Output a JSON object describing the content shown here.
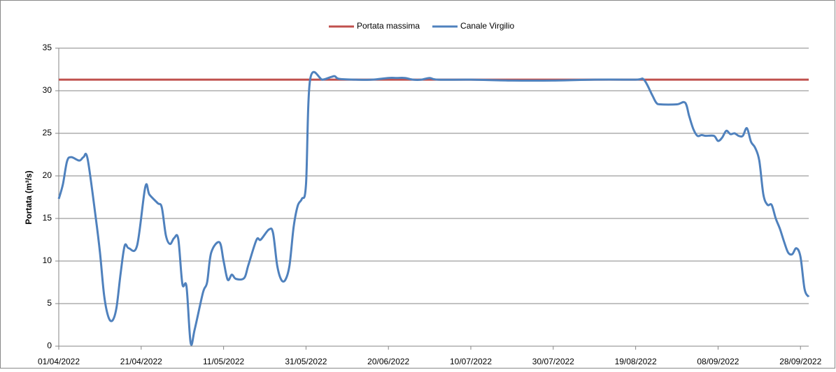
{
  "chart_data": {
    "type": "line",
    "ylabel": "Portata (m³/s)",
    "xlim": [
      "01/04/2022",
      "30/09/2022"
    ],
    "xticks": [
      "01/04/2022",
      "21/04/2022",
      "11/05/2022",
      "31/05/2022",
      "20/06/2022",
      "10/07/2022",
      "30/07/2022",
      "19/08/2022",
      "08/09/2022",
      "28/09/2022"
    ],
    "ylim": [
      0,
      35
    ],
    "yticks": [
      0,
      5,
      10,
      15,
      20,
      25,
      30,
      35
    ],
    "grid": true,
    "legend": "top",
    "series": [
      {
        "name": "Portata massima",
        "color": "#c0504d",
        "x": [
          "01/04/2022",
          "30/09/2022"
        ],
        "values": [
          31.3,
          31.3
        ]
      },
      {
        "name": "Canale Virgilio",
        "color": "#4f81bd",
        "x": [
          "01/04/2022",
          "02/04/2022",
          "03/04/2022",
          "04/04/2022",
          "06/04/2022",
          "07/04/2022",
          "08/04/2022",
          "10/04/2022",
          "11/04/2022",
          "12/04/2022",
          "13/04/2022",
          "14/04/2022",
          "15/04/2022",
          "16/04/2022",
          "17/04/2022",
          "18/04/2022",
          "20/04/2022",
          "22/04/2022",
          "23/04/2022",
          "25/04/2022",
          "26/04/2022",
          "27/04/2022",
          "28/04/2022",
          "29/04/2022",
          "30/04/2022",
          "01/05/2022",
          "02/05/2022",
          "03/05/2022",
          "04/05/2022",
          "06/05/2022",
          "07/05/2022",
          "08/05/2022",
          "10/05/2022",
          "11/05/2022",
          "12/05/2022",
          "13/05/2022",
          "14/05/2022",
          "16/05/2022",
          "17/05/2022",
          "19/05/2022",
          "20/05/2022",
          "22/05/2022",
          "23/05/2022",
          "24/05/2022",
          "25/05/2022",
          "26/05/2022",
          "27/05/2022",
          "28/05/2022",
          "29/05/2022",
          "30/05/2022",
          "31/05/2022",
          "01/06/2022",
          "04/06/2022",
          "06/06/2022",
          "07/06/2022",
          "08/06/2022",
          "12/06/2022",
          "16/06/2022",
          "20/06/2022",
          "22/06/2022",
          "24/06/2022",
          "26/06/2022",
          "28/06/2022",
          "30/06/2022",
          "02/07/2022",
          "10/07/2022",
          "20/07/2022",
          "30/07/2022",
          "09/08/2022",
          "19/08/2022",
          "21/08/2022",
          "23/08/2022",
          "24/08/2022",
          "25/08/2022",
          "29/08/2022",
          "31/08/2022",
          "01/09/2022",
          "02/09/2022",
          "03/09/2022",
          "04/09/2022",
          "05/09/2022",
          "07/09/2022",
          "08/09/2022",
          "09/09/2022",
          "10/09/2022",
          "11/09/2022",
          "12/09/2022",
          "13/09/2022",
          "14/09/2022",
          "15/09/2022",
          "16/09/2022",
          "17/09/2022",
          "18/09/2022",
          "19/09/2022",
          "20/09/2022",
          "21/09/2022",
          "22/09/2022",
          "23/09/2022",
          "24/09/2022",
          "25/09/2022",
          "26/09/2022",
          "27/09/2022",
          "28/09/2022",
          "29/09/2022",
          "30/09/2022"
        ],
        "values": [
          17.3,
          19,
          21.7,
          22.2,
          21.8,
          22.2,
          22,
          15,
          11,
          6,
          3.5,
          3,
          4.5,
          8.5,
          11.8,
          11.5,
          11.8,
          18.7,
          17.8,
          16.8,
          16.3,
          13,
          12,
          12.7,
          12.6,
          7.3,
          7,
          0.4,
          2,
          6.3,
          7.5,
          11,
          12.2,
          10,
          7.8,
          8.4,
          7.9,
          8,
          9.5,
          12.5,
          12.5,
          13.7,
          13.3,
          9.5,
          7.8,
          7.8,
          9.5,
          14,
          16.5,
          17.3,
          19,
          31.3,
          31.3,
          31.6,
          31.7,
          31.4,
          31.3,
          31.3,
          31.5,
          31.5,
          31.5,
          31.3,
          31.3,
          31.5,
          31.3,
          31.3,
          31.2,
          31.2,
          31.3,
          31.3,
          31.3,
          29.5,
          28.6,
          28.4,
          28.4,
          28.6,
          27,
          25.5,
          24.7,
          24.8,
          24.7,
          24.7,
          24.1,
          24.5,
          25.3,
          24.9,
          25,
          24.7,
          24.7,
          25.6,
          24,
          23.3,
          21.8,
          17.8,
          16.6,
          16.6,
          15,
          13.8,
          12.3,
          11,
          10.8,
          11.5,
          10.5,
          6.7,
          5.8
        ]
      }
    ]
  }
}
